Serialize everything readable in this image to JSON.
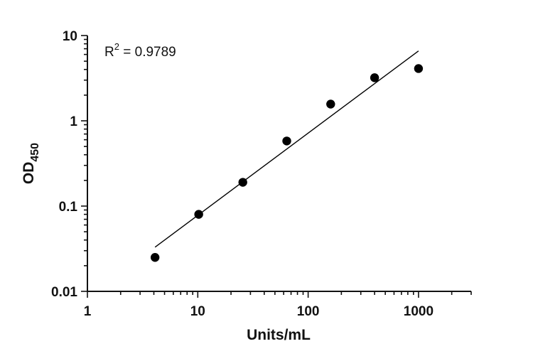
{
  "chart_data": {
    "type": "scatter",
    "x_scale": "log",
    "y_scale": "log",
    "xlim": [
      1,
      3000
    ],
    "ylim": [
      0.01,
      10
    ],
    "x_ticks": [
      1,
      10,
      100,
      1000
    ],
    "x_tick_labels": [
      "1",
      "10",
      "100",
      "1000"
    ],
    "y_ticks": [
      0.01,
      0.1,
      1,
      10
    ],
    "y_tick_labels": [
      "0.01",
      "0.1",
      "1",
      "10"
    ],
    "xlabel": "Units/mL",
    "ylabel": {
      "main": "OD",
      "subscript": "450"
    },
    "annotation": {
      "prefix": "R",
      "superscript": "2",
      "suffix": " = 0.9789"
    },
    "grid": false,
    "legend": "none",
    "points": [
      {
        "x": 4.1,
        "y": 0.025
      },
      {
        "x": 10.2,
        "y": 0.08
      },
      {
        "x": 25.6,
        "y": 0.19
      },
      {
        "x": 64,
        "y": 0.58
      },
      {
        "x": 160,
        "y": 1.57
      },
      {
        "x": 400,
        "y": 3.2
      },
      {
        "x": 1000,
        "y": 4.1
      }
    ],
    "fit_line": {
      "x": [
        4.1,
        1000
      ],
      "y": [
        0.033,
        6.6
      ]
    }
  },
  "colors": {
    "axis": "#111111",
    "marker": "#000000",
    "line": "#000000"
  }
}
